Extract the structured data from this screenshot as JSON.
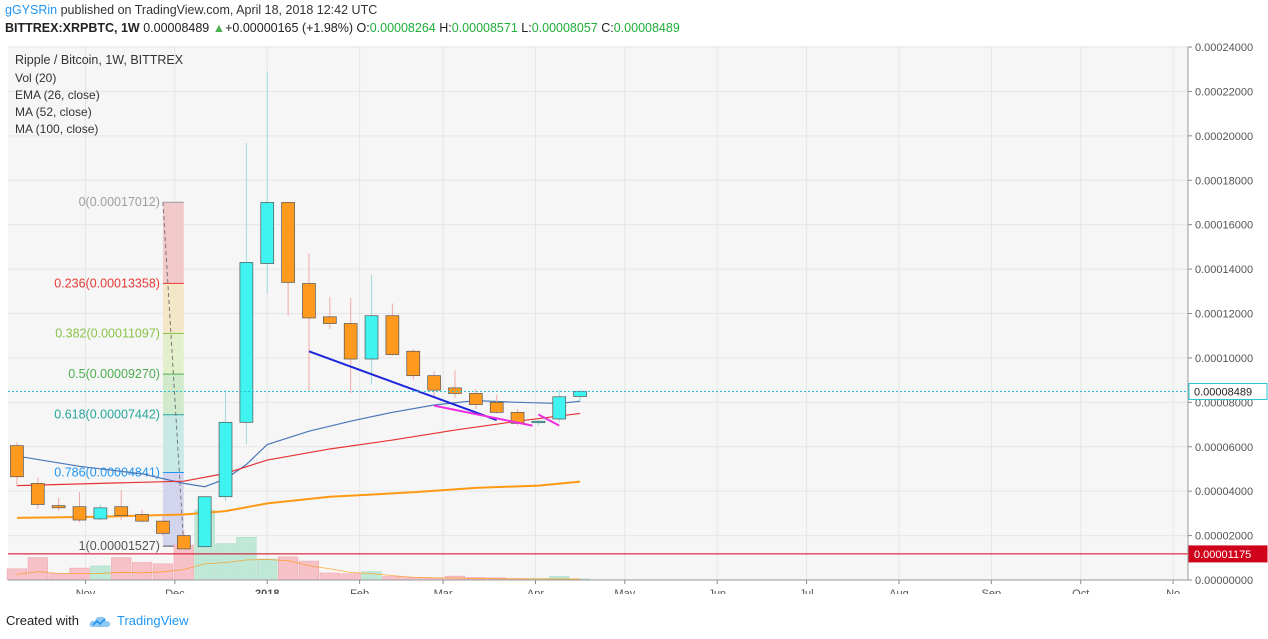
{
  "header": {
    "author": "gGYSRin",
    "published_text": "published on TradingView.com, April 18, 2018 12:42 UTC",
    "symbol": "BITTREX:XRPBTC, 1W",
    "last": "0.00008489",
    "up_arrow": "▲",
    "change": "+0.00000165 (+1.98%)",
    "o_label": "O:",
    "o_value": "0.00008264",
    "h_label": "H:",
    "h_value": "0.00008571",
    "l_label": "L:",
    "l_value": "0.00008057",
    "c_label": "C:",
    "c_value": "0.00008489"
  },
  "legend": {
    "title": "Ripple / Bitcoin, 1W, BITTREX",
    "indicators": [
      "Vol (20)",
      "EMA (26, close)",
      "MA (52, close)",
      "MA (100, close)"
    ]
  },
  "footer": {
    "created_with": "Created with",
    "brand": "TradingView"
  },
  "colors": {
    "up_candle": "#3ff3f0",
    "down_candle": "#ff9a1f",
    "candle_border": "#555555",
    "ema26": "#4a78b8",
    "ma52": "#e63232",
    "ma100": "#ff9913",
    "last_price_line": "#27c4d8",
    "level_line": "#d0021b",
    "trend_blue": "#1d26d8",
    "trend_magenta": "#ee2de0",
    "vol_up": "#bfe9d6",
    "vol_down": "#f7c1c8"
  },
  "chart_data": {
    "type": "candlestick",
    "y_axis_side": "right",
    "ylim": [
      0,
      0.00024
    ],
    "y_ticks": [
      "0.00000000",
      "0.00002000",
      "0.00004000",
      "0.00006000",
      "0.00008000",
      "0.00010000",
      "0.00012000",
      "0.00014000",
      "0.00016000",
      "0.00018000",
      "0.00020000",
      "0.00022000",
      "0.00024000"
    ],
    "x_ticks": [
      {
        "label": "Nov",
        "x": "2017-11-01"
      },
      {
        "label": "Dec",
        "x": "2017-12-01"
      },
      {
        "label": "2018",
        "x": "2018-01-01"
      },
      {
        "label": "Feb",
        "x": "2018-02-01"
      },
      {
        "label": "Mar",
        "x": "2018-03-01"
      },
      {
        "label": "Apr",
        "x": "2018-04-01"
      },
      {
        "label": "May",
        "x": "2018-05-01"
      },
      {
        "label": "Jun",
        "x": "2018-06-01"
      },
      {
        "label": "Jul",
        "x": "2018-07-01"
      },
      {
        "label": "Aug",
        "x": "2018-08-01"
      },
      {
        "label": "Sep",
        "x": "2018-09-01"
      },
      {
        "label": "Oct",
        "x": "2018-10-01"
      },
      {
        "label": "No",
        "x": "2018-11-01"
      }
    ],
    "x_range": [
      "2017-10-06",
      "2018-11-06"
    ],
    "candles": [
      {
        "t": "2017-10-09",
        "o": 6.05e-05,
        "h": 6.2e-05,
        "l": 4.2e-05,
        "c": 4.65e-05
      },
      {
        "t": "2017-10-16",
        "o": 4.35e-05,
        "h": 4.6e-05,
        "l": 3.2e-05,
        "c": 3.4e-05
      },
      {
        "t": "2017-10-23",
        "o": 3.35e-05,
        "h": 3.7e-05,
        "l": 3.1e-05,
        "c": 3.25e-05
      },
      {
        "t": "2017-10-30",
        "o": 3.3e-05,
        "h": 3.95e-05,
        "l": 2.6e-05,
        "c": 2.7e-05
      },
      {
        "t": "2017-11-06",
        "o": 2.75e-05,
        "h": 3.4e-05,
        "l": 2.7e-05,
        "c": 3.25e-05
      },
      {
        "t": "2017-11-13",
        "o": 3.3e-05,
        "h": 4.05e-05,
        "l": 2.7e-05,
        "c": 2.9e-05
      },
      {
        "t": "2017-11-20",
        "o": 2.95e-05,
        "h": 3.15e-05,
        "l": 2.6e-05,
        "c": 2.65e-05
      },
      {
        "t": "2017-11-27",
        "o": 2.65e-05,
        "h": 2.95e-05,
        "l": 2e-05,
        "c": 2.1e-05
      },
      {
        "t": "2017-12-04",
        "o": 2e-05,
        "h": 2.2e-05,
        "l": 1.53e-05,
        "c": 1.4e-05
      },
      {
        "t": "2017-12-11",
        "o": 1.5e-05,
        "h": 3.7e-05,
        "l": 1.45e-05,
        "c": 3.75e-05
      },
      {
        "t": "2017-12-18",
        "o": 3.75e-05,
        "h": 8.55e-05,
        "l": 3.55e-05,
        "c": 7.1e-05
      },
      {
        "t": "2017-12-25",
        "o": 7.1e-05,
        "h": 0.000197,
        "l": 6.1e-05,
        "c": 0.000143
      },
      {
        "t": "2018-01-01",
        "o": 0.0001425,
        "h": 0.000229,
        "l": 0.000129,
        "c": 0.00017
      },
      {
        "t": "2018-01-08",
        "o": 0.00017,
        "h": 0.00017,
        "l": 0.000119,
        "c": 0.000134
      },
      {
        "t": "2018-01-15",
        "o": 0.0001335,
        "h": 0.000147,
        "l": 8.5e-05,
        "c": 0.000118
      },
      {
        "t": "2018-01-22",
        "o": 0.0001185,
        "h": 0.0001275,
        "l": 0.000113,
        "c": 0.0001155
      },
      {
        "t": "2018-01-29",
        "o": 0.0001155,
        "h": 0.000127,
        "l": 8.4e-05,
        "c": 9.95e-05
      },
      {
        "t": "2018-02-05",
        "o": 9.95e-05,
        "h": 0.0001375,
        "l": 8.8e-05,
        "c": 0.000119
      },
      {
        "t": "2018-02-12",
        "o": 0.000119,
        "h": 0.0001245,
        "l": 0.000101,
        "c": 0.0001015
      },
      {
        "t": "2018-02-19",
        "o": 0.000103,
        "h": 0.000104,
        "l": 9e-05,
        "c": 9.2e-05
      },
      {
        "t": "2018-02-26",
        "o": 9.2e-05,
        "h": 9.4e-05,
        "l": 8.2e-05,
        "c": 8.55e-05
      },
      {
        "t": "2018-03-05",
        "o": 8.65e-05,
        "h": 9.45e-05,
        "l": 8.2e-05,
        "c": 8.4e-05
      },
      {
        "t": "2018-03-12",
        "o": 8.4e-05,
        "h": 8.6e-05,
        "l": 7.7e-05,
        "c": 7.9e-05
      },
      {
        "t": "2018-03-19",
        "o": 8e-05,
        "h": 8.35e-05,
        "l": 7.5e-05,
        "c": 7.55e-05
      },
      {
        "t": "2018-03-26",
        "o": 7.55e-05,
        "h": 7.7e-05,
        "l": 6.95e-05,
        "c": 7.05e-05
      },
      {
        "t": "2018-04-02",
        "o": 7.1e-05,
        "h": 7.2e-05,
        "l": 6.95e-05,
        "c": 7.15e-05
      },
      {
        "t": "2018-04-09",
        "o": 7.25e-05,
        "h": 8.55e-05,
        "l": 7.1e-05,
        "c": 8.25e-05
      },
      {
        "t": "2018-04-16",
        "o": 8.264e-05,
        "h": 8.571e-05,
        "l": 8.057e-05,
        "c": 8.489e-05
      }
    ],
    "volume": {
      "scale_max": 1,
      "bars": [
        {
          "t": "2017-10-09",
          "v": 0.16,
          "dir": "down"
        },
        {
          "t": "2017-10-16",
          "v": 0.32,
          "dir": "down"
        },
        {
          "t": "2017-10-23",
          "v": 0.09,
          "dir": "down"
        },
        {
          "t": "2017-10-30",
          "v": 0.17,
          "dir": "down"
        },
        {
          "t": "2017-11-06",
          "v": 0.2,
          "dir": "up"
        },
        {
          "t": "2017-11-13",
          "v": 0.32,
          "dir": "down"
        },
        {
          "t": "2017-11-20",
          "v": 0.25,
          "dir": "down"
        },
        {
          "t": "2017-11-27",
          "v": 0.23,
          "dir": "down"
        },
        {
          "t": "2017-12-04",
          "v": 0.5,
          "dir": "down"
        },
        {
          "t": "2017-12-11",
          "v": 1.0,
          "dir": "up"
        },
        {
          "t": "2017-12-18",
          "v": 0.52,
          "dir": "up"
        },
        {
          "t": "2017-12-25",
          "v": 0.61,
          "dir": "up"
        },
        {
          "t": "2018-01-01",
          "v": 0.3,
          "dir": "up"
        },
        {
          "t": "2018-01-08",
          "v": 0.33,
          "dir": "down"
        },
        {
          "t": "2018-01-15",
          "v": 0.27,
          "dir": "down"
        },
        {
          "t": "2018-01-22",
          "v": 0.1,
          "dir": "down"
        },
        {
          "t": "2018-01-29",
          "v": 0.09,
          "dir": "down"
        },
        {
          "t": "2018-02-05",
          "v": 0.12,
          "dir": "up"
        },
        {
          "t": "2018-02-12",
          "v": 0.05,
          "dir": "down"
        },
        {
          "t": "2018-02-19",
          "v": 0.035,
          "dir": "down"
        },
        {
          "t": "2018-02-26",
          "v": 0.03,
          "dir": "down"
        },
        {
          "t": "2018-03-05",
          "v": 0.055,
          "dir": "down"
        },
        {
          "t": "2018-03-12",
          "v": 0.035,
          "dir": "down"
        },
        {
          "t": "2018-03-19",
          "v": 0.03,
          "dir": "down"
        },
        {
          "t": "2018-03-26",
          "v": 0.02,
          "dir": "down"
        },
        {
          "t": "2018-04-02",
          "v": 0.02,
          "dir": "up"
        },
        {
          "t": "2018-04-09",
          "v": 0.05,
          "dir": "up"
        },
        {
          "t": "2018-04-16",
          "v": 0.015,
          "dir": "up"
        }
      ]
    },
    "ma_lines": [
      {
        "name": "EMA (26, close)",
        "color": "#4a78b8",
        "points": [
          [
            "2017-10-09",
            5.58e-05
          ],
          [
            "2017-10-30",
            5.12e-05
          ],
          [
            "2017-11-20",
            4.78e-05
          ],
          [
            "2017-12-04",
            4.35e-05
          ],
          [
            "2017-12-11",
            4.2e-05
          ],
          [
            "2017-12-18",
            4.55e-05
          ],
          [
            "2017-12-25",
            5.2e-05
          ],
          [
            "2018-01-01",
            6.1e-05
          ],
          [
            "2018-01-15",
            6.7e-05
          ],
          [
            "2018-01-29",
            7.15e-05
          ],
          [
            "2018-02-12",
            7.55e-05
          ],
          [
            "2018-02-26",
            7.88e-05
          ],
          [
            "2018-03-12",
            8.08e-05
          ],
          [
            "2018-03-26",
            8e-05
          ],
          [
            "2018-04-09",
            7.95e-05
          ],
          [
            "2018-04-16",
            8.05e-05
          ]
        ]
      },
      {
        "name": "MA (52, close)",
        "color": "#e63232",
        "points": [
          [
            "2017-10-09",
            4.25e-05
          ],
          [
            "2017-11-06",
            4.35e-05
          ],
          [
            "2017-12-04",
            4.45e-05
          ],
          [
            "2017-12-18",
            4.8e-05
          ],
          [
            "2018-01-01",
            5.4e-05
          ],
          [
            "2018-01-22",
            5.9e-05
          ],
          [
            "2018-02-12",
            6.3e-05
          ],
          [
            "2018-03-05",
            6.75e-05
          ],
          [
            "2018-03-26",
            7.15e-05
          ],
          [
            "2018-04-16",
            7.5e-05
          ]
        ]
      },
      {
        "name": "MA (100, close)",
        "color": "#ff9913",
        "points": [
          [
            "2017-10-09",
            2.8e-05
          ],
          [
            "2017-11-06",
            2.85e-05
          ],
          [
            "2017-12-04",
            2.95e-05
          ],
          [
            "2017-12-18",
            3.1e-05
          ],
          [
            "2018-01-01",
            3.45e-05
          ],
          [
            "2018-01-22",
            3.75e-05
          ],
          [
            "2018-02-19",
            3.95e-05
          ],
          [
            "2018-03-12",
            4.15e-05
          ],
          [
            "2018-04-02",
            4.25e-05
          ],
          [
            "2018-04-16",
            4.43e-05
          ]
        ]
      }
    ],
    "fibonacci": {
      "x_start": "2017-11-27",
      "x_end": "2017-12-04",
      "levels": [
        {
          "label": "0(0.00017012)",
          "value": 0.00017012,
          "color": "#9e9e9e",
          "fill": "#f2c4c4"
        },
        {
          "label": "0.236(0.00013358)",
          "value": 0.00013358,
          "color": "#e53935",
          "fill": "#f3e6c2"
        },
        {
          "label": "0.382(0.00011097)",
          "value": 0.00011097,
          "color": "#8bc34a",
          "fill": "#e2f0c8"
        },
        {
          "label": "0.5(0.00009270)",
          "value": 9.27e-05,
          "color": "#4caf50",
          "fill": "#cde9c8"
        },
        {
          "label": "0.618(0.00007442)",
          "value": 7.442e-05,
          "color": "#26a69a",
          "fill": "#c4e8e6"
        },
        {
          "label": "0.786(0.00004841)",
          "value": 4.841e-05,
          "color": "#2196f3",
          "fill": "#cfd2ee"
        },
        {
          "label": "1(0.00001527)",
          "value": 1.527e-05,
          "color": "#555555",
          "fill": "#cfd2ee"
        }
      ]
    },
    "price_lines": [
      {
        "label": "0.00008489",
        "value": 8.489e-05,
        "style": "dotted",
        "color": "#27c4d8",
        "label_bg": "#ffffff",
        "label_color": "#222"
      },
      {
        "label": "0.00001175",
        "value": 1.175e-05,
        "style": "solid",
        "color": "#d0021b",
        "label_bg": "#d0021b",
        "label_color": "#ffffff"
      }
    ],
    "trendlines": [
      {
        "color": "#1d26d8",
        "from": [
          "2018-01-15",
          0.000103
        ],
        "to": [
          "2018-03-19",
          7.2e-05
        ]
      },
      {
        "color": "#ee2de0",
        "from": [
          "2018-02-26",
          7.85e-05
        ],
        "to": [
          "2018-03-31",
          6.95e-05
        ]
      },
      {
        "color": "#ee2de0",
        "from": [
          "2018-04-02",
          7.45e-05
        ],
        "to": [
          "2018-04-09",
          6.95e-05
        ]
      }
    ]
  }
}
